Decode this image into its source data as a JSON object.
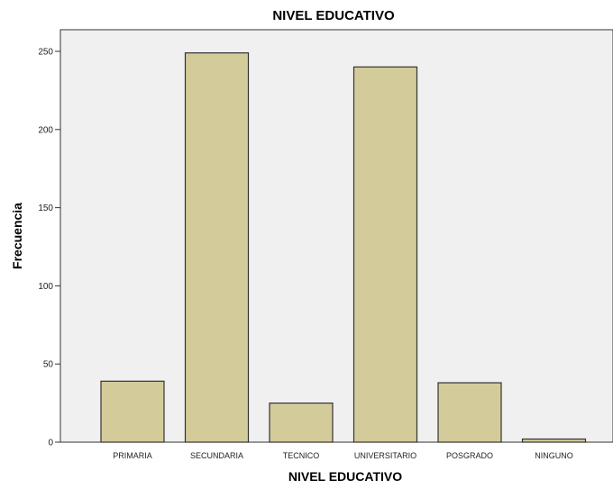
{
  "chart_data": {
    "type": "bar",
    "title": "NIVEL EDUCATIVO",
    "xlabel": "NIVEL EDUCATIVO",
    "ylabel": "Frecuencia",
    "categories": [
      "PRIMARIA",
      "SECUNDARIA",
      "TECNICO",
      "UNIVERSITARIO",
      "POSGRADO",
      "NINGUNO"
    ],
    "values": [
      39,
      249,
      25,
      240,
      38,
      2
    ],
    "ylim": [
      0,
      265
    ],
    "yticks": [
      0,
      50,
      100,
      150,
      200,
      250
    ],
    "grid": false,
    "legend": "none",
    "colors": {
      "bar_fill": "#d4cb9a",
      "bar_stroke": "#333333",
      "plot_background": "#f0f0f0",
      "plot_border": "#333333"
    }
  }
}
